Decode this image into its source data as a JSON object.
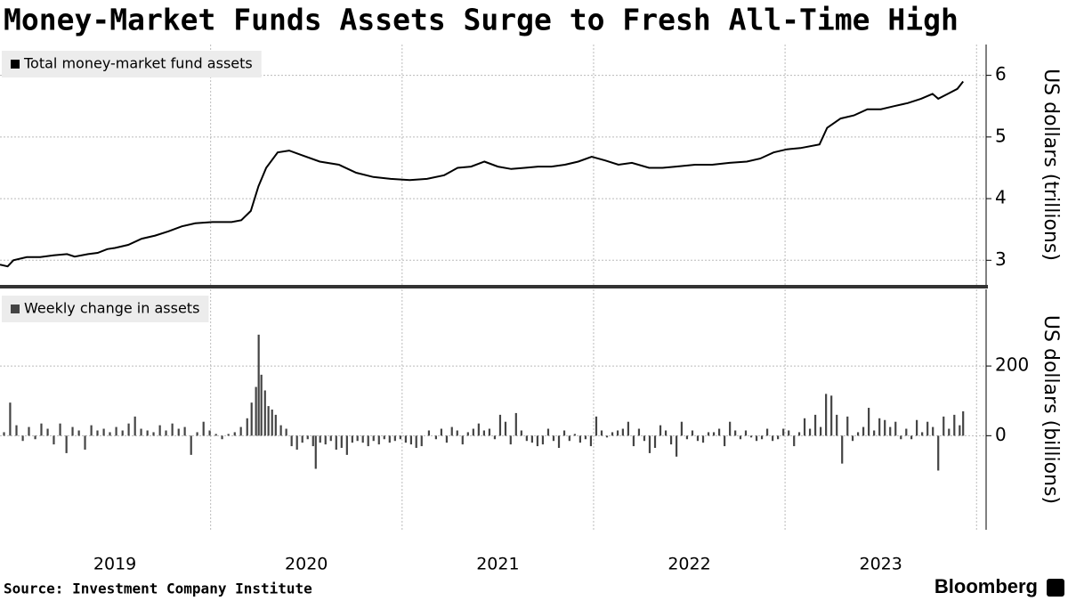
{
  "title": "Money-Market Funds Assets Surge to Fresh All-Time High",
  "source": "Source: Investment Company Institute",
  "brand": "Bloomberg",
  "chart_data": [
    {
      "type": "line",
      "ylabel": "US dollars (trillions)",
      "xlim": [
        2018.9,
        2024.05
      ],
      "ylim": [
        2.6,
        6.5
      ],
      "yticks": [
        3,
        4,
        5,
        6
      ],
      "grid": true,
      "series": [
        {
          "name": "Total money-market fund assets",
          "color": "#000000",
          "x": [
            2018.9,
            2018.94,
            2018.97,
            2019.04,
            2019.11,
            2019.18,
            2019.25,
            2019.29,
            2019.36,
            2019.41,
            2019.46,
            2019.5,
            2019.57,
            2019.64,
            2019.71,
            2019.78,
            2019.85,
            2019.92,
            2020.01,
            2020.11,
            2020.16,
            2020.21,
            2020.25,
            2020.29,
            2020.35,
            2020.41,
            2020.48,
            2020.57,
            2020.67,
            2020.76,
            2020.85,
            2020.94,
            2021.04,
            2021.13,
            2021.22,
            2021.29,
            2021.36,
            2021.43,
            2021.5,
            2021.57,
            2021.64,
            2021.71,
            2021.78,
            2021.85,
            2021.92,
            2021.99,
            2022.06,
            2022.13,
            2022.2,
            2022.29,
            2022.36,
            2022.43,
            2022.53,
            2022.62,
            2022.71,
            2022.8,
            2022.87,
            2022.94,
            2023.01,
            2023.08,
            2023.18,
            2023.22,
            2023.29,
            2023.36,
            2023.43,
            2023.5,
            2023.57,
            2023.64,
            2023.71,
            2023.77,
            2023.8,
            2023.85,
            2023.9,
            2023.93
          ],
          "values": [
            2.93,
            2.9,
            3.0,
            3.05,
            3.05,
            3.08,
            3.1,
            3.06,
            3.1,
            3.12,
            3.18,
            3.2,
            3.25,
            3.35,
            3.4,
            3.47,
            3.55,
            3.6,
            3.62,
            3.62,
            3.65,
            3.8,
            4.2,
            4.5,
            4.75,
            4.78,
            4.7,
            4.6,
            4.55,
            4.42,
            4.35,
            4.32,
            4.3,
            4.32,
            4.38,
            4.5,
            4.52,
            4.6,
            4.52,
            4.48,
            4.5,
            4.52,
            4.52,
            4.55,
            4.6,
            4.68,
            4.62,
            4.55,
            4.58,
            4.5,
            4.5,
            4.52,
            4.55,
            4.55,
            4.58,
            4.6,
            4.65,
            4.75,
            4.8,
            4.82,
            4.88,
            5.15,
            5.3,
            5.35,
            5.45,
            5.45,
            5.5,
            5.55,
            5.62,
            5.7,
            5.62,
            5.7,
            5.78,
            5.9
          ]
        }
      ]
    },
    {
      "type": "bar",
      "ylabel": "US dollars (billions)",
      "xlim": [
        2018.9,
        2024.05
      ],
      "ylim": [
        -270,
        420
      ],
      "yticks": [
        0,
        200
      ],
      "xticks": [
        2019,
        2020,
        2021,
        2022,
        2023
      ],
      "grid": true,
      "series": [
        {
          "name": "Weekly change in assets",
          "color": "#444444",
          "x": [
            2018.921,
            2018.953,
            2018.986,
            2019.019,
            2019.051,
            2019.084,
            2019.116,
            2019.149,
            2019.181,
            2019.214,
            2019.247,
            2019.279,
            2019.312,
            2019.344,
            2019.377,
            2019.409,
            2019.442,
            2019.474,
            2019.507,
            2019.54,
            2019.572,
            2019.605,
            2019.637,
            2019.67,
            2019.702,
            2019.735,
            2019.767,
            2019.8,
            2019.833,
            2019.865,
            2019.898,
            2019.93,
            2019.963,
            2019.995,
            2020.028,
            2020.06,
            2020.093,
            2020.126,
            2020.158,
            2020.191,
            2020.214,
            2020.237,
            2020.251,
            2020.265,
            2020.284,
            2020.302,
            2020.321,
            2020.34,
            2020.367,
            2020.395,
            2020.423,
            2020.451,
            2020.479,
            2020.507,
            2020.535,
            2020.549,
            2020.572,
            2020.6,
            2020.628,
            2020.656,
            2020.684,
            2020.712,
            2020.74,
            2020.767,
            2020.795,
            2020.823,
            2020.851,
            2020.879,
            2020.907,
            2020.935,
            2020.963,
            2020.991,
            2021.019,
            2021.047,
            2021.074,
            2021.102,
            2021.14,
            2021.177,
            2021.205,
            2021.233,
            2021.26,
            2021.288,
            2021.316,
            2021.344,
            2021.372,
            2021.4,
            2021.428,
            2021.456,
            2021.484,
            2021.512,
            2021.54,
            2021.567,
            2021.595,
            2021.623,
            2021.651,
            2021.679,
            2021.707,
            2021.735,
            2021.763,
            2021.791,
            2021.819,
            2021.847,
            2021.874,
            2021.902,
            2021.93,
            2021.958,
            2021.986,
            2022.014,
            2022.042,
            2022.07,
            2022.098,
            2022.126,
            2022.153,
            2022.181,
            2022.209,
            2022.237,
            2022.265,
            2022.293,
            2022.321,
            2022.349,
            2022.377,
            2022.405,
            2022.433,
            2022.46,
            2022.488,
            2022.516,
            2022.544,
            2022.572,
            2022.6,
            2022.628,
            2022.656,
            2022.684,
            2022.712,
            2022.74,
            2022.767,
            2022.795,
            2022.823,
            2022.851,
            2022.879,
            2022.907,
            2022.935,
            2022.963,
            2022.991,
            2023.019,
            2023.047,
            2023.074,
            2023.102,
            2023.13,
            2023.158,
            2023.186,
            2023.214,
            2023.242,
            2023.27,
            2023.298,
            2023.326,
            2023.353,
            2023.381,
            2023.409,
            2023.437,
            2023.465,
            2023.493,
            2023.521,
            2023.549,
            2023.577,
            2023.605,
            2023.633,
            2023.66,
            2023.688,
            2023.716,
            2023.744,
            2023.772,
            2023.8,
            2023.828,
            2023.856,
            2023.884,
            2023.912,
            2023.93
          ],
          "values": [
            10,
            95,
            30,
            -15,
            25,
            -10,
            35,
            20,
            -25,
            35,
            -50,
            25,
            15,
            -40,
            30,
            15,
            20,
            10,
            25,
            15,
            35,
            55,
            20,
            15,
            10,
            30,
            15,
            35,
            20,
            25,
            -55,
            10,
            40,
            15,
            5,
            -10,
            5,
            10,
            25,
            50,
            95,
            140,
            290,
            175,
            130,
            85,
            75,
            60,
            30,
            20,
            -30,
            -40,
            -20,
            -10,
            -30,
            -95,
            -20,
            -25,
            -15,
            -40,
            -35,
            -55,
            -20,
            -15,
            -20,
            -30,
            -15,
            -25,
            -10,
            -20,
            -15,
            -10,
            -20,
            -25,
            -35,
            -30,
            15,
            -10,
            20,
            -20,
            25,
            15,
            -25,
            10,
            20,
            35,
            15,
            20,
            -10,
            60,
            40,
            -25,
            65,
            15,
            -15,
            -20,
            -30,
            -25,
            20,
            -15,
            -35,
            15,
            -15,
            5,
            -20,
            -10,
            -30,
            55,
            15,
            -5,
            10,
            15,
            20,
            40,
            -30,
            20,
            -15,
            -50,
            -35,
            30,
            15,
            -25,
            -60,
            40,
            -10,
            15,
            -15,
            -20,
            10,
            10,
            20,
            -30,
            40,
            15,
            -10,
            15,
            -5,
            -15,
            -10,
            20,
            -15,
            -10,
            20,
            15,
            -30,
            10,
            50,
            20,
            60,
            25,
            120,
            115,
            60,
            -80,
            55,
            -15,
            10,
            25,
            80,
            15,
            50,
            45,
            25,
            40,
            -10,
            20,
            -10,
            45,
            10,
            40,
            25,
            -100,
            55,
            20,
            60,
            30,
            70
          ]
        }
      ]
    }
  ]
}
